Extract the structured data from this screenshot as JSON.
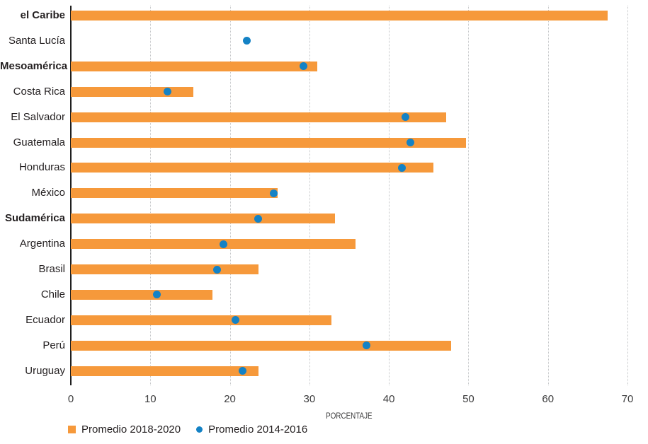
{
  "chart_data": {
    "type": "bar",
    "orientation": "horizontal",
    "title": "",
    "xlabel": "PORCENTAJE",
    "ylabel": "",
    "xlim": [
      0,
      70
    ],
    "xticks": [
      0,
      10,
      20,
      30,
      40,
      50,
      60,
      70
    ],
    "grid": "vertical-dotted",
    "legend_position": "bottom-left",
    "categories": [
      {
        "label": "el Caribe",
        "bold": true
      },
      {
        "label": "Santa Lucía",
        "bold": false
      },
      {
        "label": "Mesoamérica",
        "bold": true
      },
      {
        "label": "Costa Rica",
        "bold": false
      },
      {
        "label": "El Salvador",
        "bold": false
      },
      {
        "label": "Guatemala",
        "bold": false
      },
      {
        "label": "Honduras",
        "bold": false
      },
      {
        "label": "México",
        "bold": false
      },
      {
        "label": "Sudamérica",
        "bold": true
      },
      {
        "label": "Argentina",
        "bold": false
      },
      {
        "label": "Brasil",
        "bold": false
      },
      {
        "label": "Chile",
        "bold": false
      },
      {
        "label": "Ecuador",
        "bold": false
      },
      {
        "label": "Perú",
        "bold": false
      },
      {
        "label": "Uruguay",
        "bold": false
      }
    ],
    "series": [
      {
        "name": "Promedio 2018-2020",
        "mark": "bar",
        "color": "#F6993B",
        "values": [
          67.5,
          null,
          31.0,
          15.4,
          47.2,
          49.7,
          45.6,
          26.0,
          33.2,
          35.8,
          23.6,
          17.8,
          32.8,
          47.8,
          23.6
        ]
      },
      {
        "name": "Promedio 2014-2016",
        "mark": "dot",
        "color": "#1482C5",
        "values": [
          null,
          22.1,
          29.3,
          12.2,
          42.1,
          42.7,
          41.6,
          25.5,
          23.6,
          19.2,
          18.4,
          10.8,
          20.7,
          37.2,
          21.6
        ]
      }
    ]
  },
  "style": {
    "grid_color": "#c3c5c7",
    "axis_color": "#1f1f1f",
    "text_color": "#231f20",
    "tick_color": "#3c3c3d"
  }
}
